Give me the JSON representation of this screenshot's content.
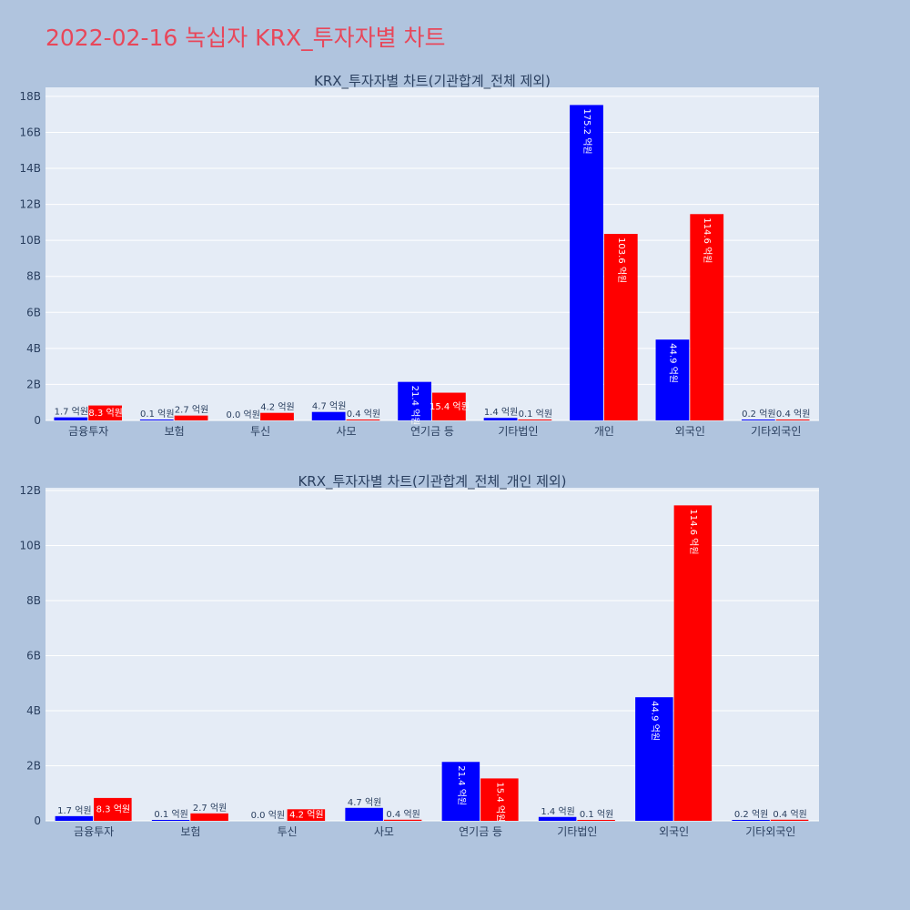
{
  "page": {
    "title": "2022-02-16 녹십자 KRX_투자자별 차트"
  },
  "colors": {
    "buy": "#0000ff",
    "sell": "#ff0000",
    "plot_bg": "#e5ecf6",
    "page_bg": "#b0c4de"
  },
  "chart_data": [
    {
      "type": "bar",
      "title": "KRX_투자자별 차트(기관합계_전체 제외)",
      "categories": [
        "금융투자",
        "보험",
        "투신",
        "사모",
        "연기금 등",
        "기타법인",
        "개인",
        "외국인",
        "기타외국인"
      ],
      "series": [
        {
          "values": [
            170000000,
            10000000,
            0,
            470000000,
            2140000000,
            140000000,
            17520000000,
            4490000000,
            20000000
          ],
          "labels": [
            "1.7 억원",
            "0.1 억원",
            "0.0 억원",
            "4.7 억원",
            "21.4 억원",
            "1.4 억원",
            "175.2 억원",
            "44.9 억원",
            "0.2 억원"
          ]
        },
        {
          "values": [
            830000000,
            270000000,
            420000000,
            40000000,
            1540000000,
            10000000,
            10360000000,
            11460000000,
            40000000
          ],
          "labels": [
            "8.3 억원",
            "2.7 억원",
            "4.2 억원",
            "0.4 억원",
            "15.4 억원",
            "0.1 억원",
            "103.6 억원",
            "114.6 억원",
            "0.4 억원"
          ]
        }
      ],
      "ylim": [
        0,
        18500000000
      ],
      "yticks": [
        0,
        2000000000,
        4000000000,
        6000000000,
        8000000000,
        10000000000,
        12000000000,
        14000000000,
        16000000000,
        18000000000
      ],
      "ytick_labels": [
        "0",
        "2B",
        "4B",
        "6B",
        "8B",
        "10B",
        "12B",
        "14B",
        "16B",
        "18B"
      ],
      "grid": true,
      "legend": "none"
    },
    {
      "type": "bar",
      "title": "KRX_투자자별 차트(기관합계_전체_개인 제외)",
      "categories": [
        "금융투자",
        "보험",
        "투신",
        "사모",
        "연기금 등",
        "기타법인",
        "외국인",
        "기타외국인"
      ],
      "series": [
        {
          "values": [
            170000000,
            10000000,
            0,
            470000000,
            2140000000,
            140000000,
            4490000000,
            20000000
          ],
          "labels": [
            "1.7 억원",
            "0.1 억원",
            "0.0 억원",
            "4.7 억원",
            "21.4 억원",
            "1.4 억원",
            "44.9 억원",
            "0.2 억원"
          ]
        },
        {
          "values": [
            830000000,
            270000000,
            420000000,
            40000000,
            1540000000,
            10000000,
            11460000000,
            40000000
          ],
          "labels": [
            "8.3 억원",
            "2.7 억원",
            "4.2 억원",
            "0.4 억원",
            "15.4 억원",
            "0.1 억원",
            "114.6 억원",
            "0.4 억원"
          ]
        }
      ],
      "ylim": [
        0,
        12100000000
      ],
      "yticks": [
        0,
        2000000000,
        4000000000,
        6000000000,
        8000000000,
        10000000000,
        12000000000
      ],
      "ytick_labels": [
        "0",
        "2B",
        "4B",
        "6B",
        "8B",
        "10B",
        "12B"
      ],
      "grid": true,
      "legend": "none"
    }
  ]
}
